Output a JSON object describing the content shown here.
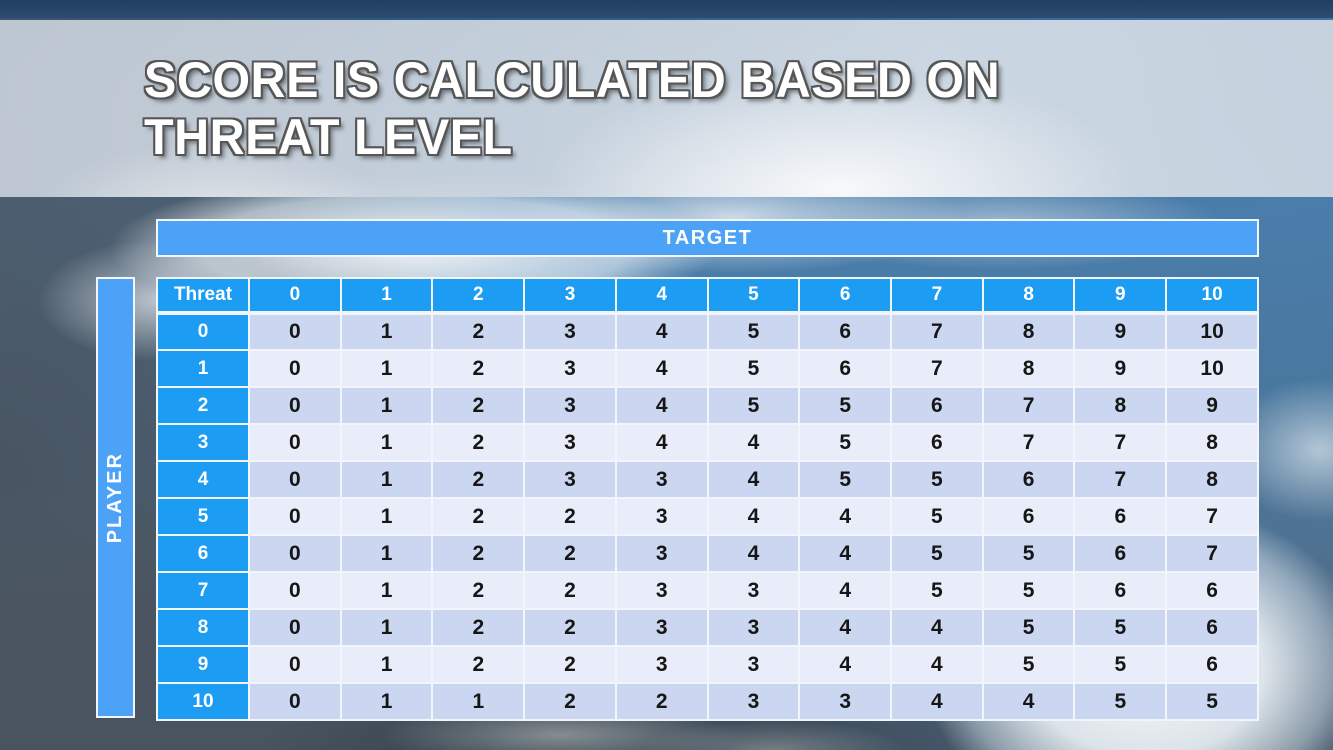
{
  "slide": {
    "title_line1": "SCORE IS CALCULATED BASED ON",
    "title_line2": "THREAT LEVEL"
  },
  "matrix": {
    "target_label": "TARGET",
    "player_label": "PLAYER",
    "corner_label": "Threat",
    "col_headers": [
      "0",
      "1",
      "2",
      "3",
      "4",
      "5",
      "6",
      "7",
      "8",
      "9",
      "10"
    ],
    "rows": [
      {
        "header": "0",
        "values": [
          0,
          1,
          2,
          3,
          4,
          5,
          6,
          7,
          8,
          9,
          10
        ]
      },
      {
        "header": "1",
        "values": [
          0,
          1,
          2,
          3,
          4,
          5,
          6,
          7,
          8,
          9,
          10
        ]
      },
      {
        "header": "2",
        "values": [
          0,
          1,
          2,
          3,
          4,
          5,
          5,
          6,
          7,
          8,
          9
        ]
      },
      {
        "header": "3",
        "values": [
          0,
          1,
          2,
          3,
          4,
          4,
          5,
          6,
          7,
          7,
          8
        ]
      },
      {
        "header": "4",
        "values": [
          0,
          1,
          2,
          3,
          3,
          4,
          5,
          5,
          6,
          7,
          8
        ]
      },
      {
        "header": "5",
        "values": [
          0,
          1,
          2,
          2,
          3,
          4,
          4,
          5,
          6,
          6,
          7
        ]
      },
      {
        "header": "6",
        "values": [
          0,
          1,
          2,
          2,
          3,
          4,
          4,
          5,
          5,
          6,
          7
        ]
      },
      {
        "header": "7",
        "values": [
          0,
          1,
          2,
          2,
          3,
          3,
          4,
          5,
          5,
          6,
          6
        ]
      },
      {
        "header": "8",
        "values": [
          0,
          1,
          2,
          2,
          3,
          3,
          4,
          4,
          5,
          5,
          6
        ]
      },
      {
        "header": "9",
        "values": [
          0,
          1,
          2,
          2,
          3,
          3,
          4,
          4,
          5,
          5,
          6
        ]
      },
      {
        "header": "10",
        "values": [
          0,
          1,
          1,
          2,
          2,
          3,
          3,
          4,
          4,
          5,
          5
        ]
      }
    ]
  },
  "colors": {
    "accent_blue_light": "#4BA2F6",
    "accent_blue_deep": "#1C9CF3",
    "row_dark": "#CBD7F0",
    "row_light": "#E8EDF9",
    "grid_line": "#F2F6FC",
    "title_text": "#FFFFFF",
    "title_outline": "#565656"
  }
}
